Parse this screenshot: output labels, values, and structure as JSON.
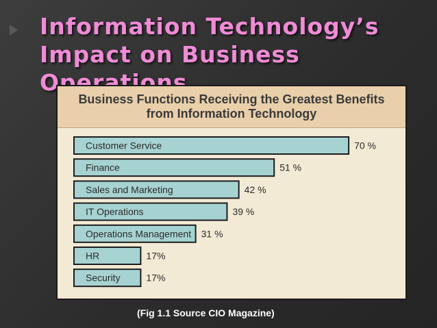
{
  "slide": {
    "title_line1": "Information Technology’s",
    "title_line2": "Impact on Business Operations",
    "caption": "(Fig 1.1 Source CIO Magazine)"
  },
  "colors": {
    "title": "#f08bd6",
    "bar_fill": "#a6d3d1",
    "chart_background": "#f3ead5",
    "chart_header": "#e9cfaa"
  },
  "chart_data": {
    "type": "bar",
    "orientation": "horizontal",
    "title": "Business Functions Receiving the Greatest Benefits from Information Technology",
    "categories": [
      "Customer Service",
      "Finance",
      "Sales and Marketing",
      "IT Operations",
      "Operations Management",
      "HR",
      "Security"
    ],
    "values": [
      70,
      51,
      42,
      39,
      31,
      17,
      17
    ],
    "value_labels": [
      "70 %",
      "51 %",
      "42 %",
      "39 %",
      "31 %",
      "17%",
      "17%"
    ],
    "xlim": [
      0,
      100
    ],
    "grid": false,
    "legend": "none"
  }
}
